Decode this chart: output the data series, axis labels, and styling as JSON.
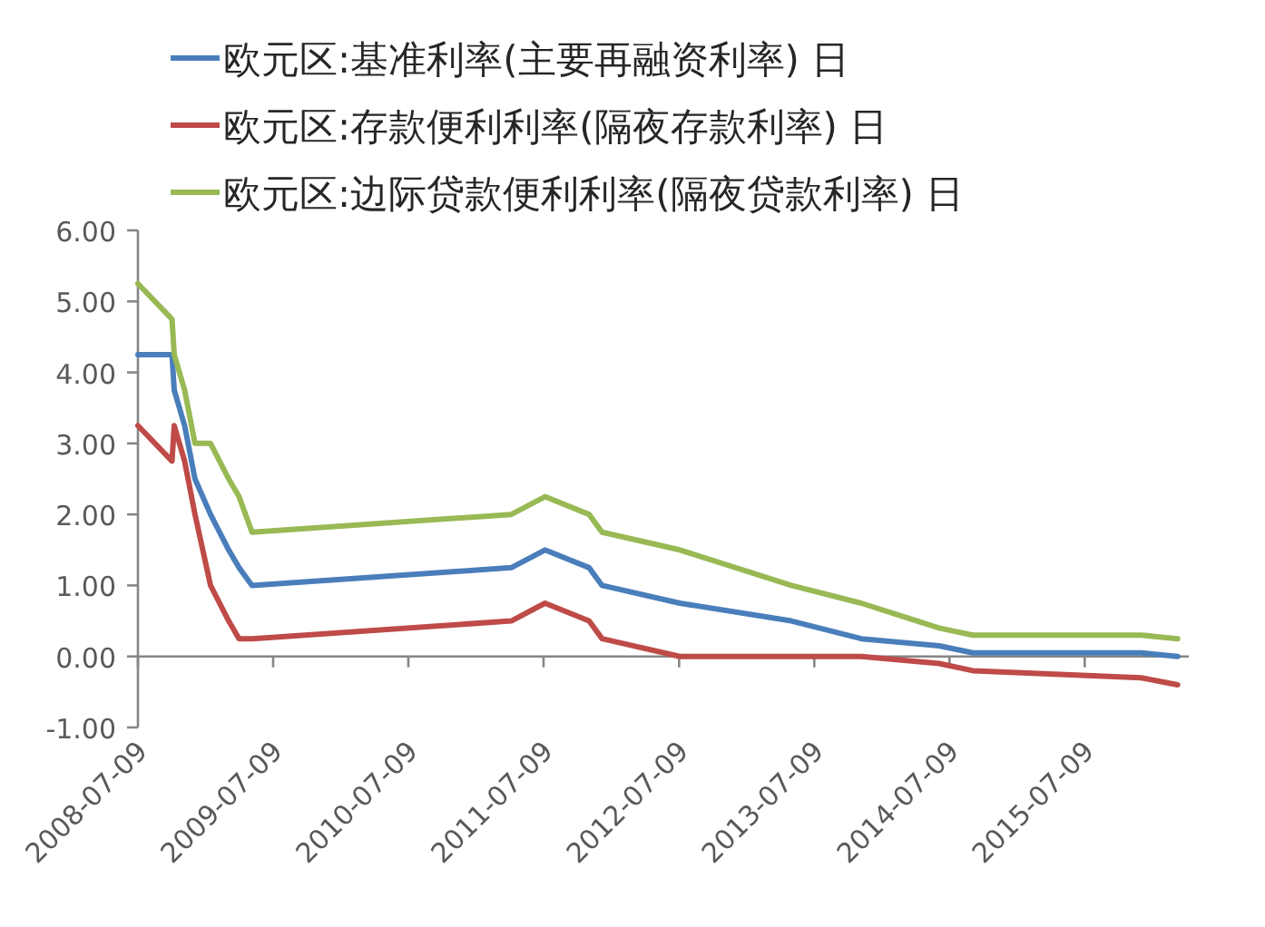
{
  "chart_data": {
    "type": "line",
    "x": [
      "2008-07-09",
      "2008-10-09",
      "2008-10-15",
      "2008-11-12",
      "2008-12-10",
      "2009-01-21",
      "2009-03-11",
      "2009-04-08",
      "2009-05-13",
      "2011-04-13",
      "2011-07-13",
      "2011-11-09",
      "2011-12-14",
      "2012-07-11",
      "2013-05-08",
      "2013-11-13",
      "2014-06-11",
      "2014-09-10",
      "2015-12-09",
      "2016-03-16"
    ],
    "series": [
      {
        "name": "欧元区:基准利率(主要再融资利率) 日",
        "color": "#4a7ebb",
        "values": [
          4.25,
          4.25,
          3.75,
          3.25,
          2.5,
          2.0,
          1.5,
          1.25,
          1.0,
          1.25,
          1.5,
          1.25,
          1.0,
          0.75,
          0.5,
          0.25,
          0.15,
          0.05,
          0.05,
          0.0
        ]
      },
      {
        "name": "欧元区:存款便利利率(隔夜存款利率) 日",
        "color": "#be4b48",
        "values": [
          3.25,
          2.75,
          3.25,
          2.75,
          2.0,
          1.0,
          0.5,
          0.25,
          0.25,
          0.5,
          0.75,
          0.5,
          0.25,
          0.0,
          0.0,
          0.0,
          -0.1,
          -0.2,
          -0.3,
          -0.4
        ]
      },
      {
        "name": "欧元区:边际贷款便利利率(隔夜贷款利率) 日",
        "color": "#98b954",
        "values": [
          5.25,
          4.75,
          4.25,
          3.75,
          3.0,
          3.0,
          2.5,
          2.25,
          1.75,
          2.0,
          2.25,
          2.0,
          1.75,
          1.5,
          1.0,
          0.75,
          0.4,
          0.3,
          0.3,
          0.25
        ]
      }
    ],
    "xlim": [
      "2008-07-09",
      "2016-04-15"
    ],
    "xticks": [
      "2008-07-09",
      "2009-07-09",
      "2010-07-09",
      "2011-07-09",
      "2012-07-09",
      "2013-07-09",
      "2014-07-09",
      "2015-07-09"
    ],
    "ylim": [
      -1,
      6
    ],
    "yticks": [
      {
        "value": 6,
        "label": "6.00"
      },
      {
        "value": 5,
        "label": "5.00"
      },
      {
        "value": 4,
        "label": "4.00"
      },
      {
        "value": 3,
        "label": "3.00"
      },
      {
        "value": 2,
        "label": "2.00"
      },
      {
        "value": 1,
        "label": "1.00"
      },
      {
        "value": 0,
        "label": "0.00"
      },
      {
        "value": -1,
        "label": "-1.00"
      }
    ],
    "legend": "top",
    "marker": "none",
    "line_style": "solid"
  }
}
